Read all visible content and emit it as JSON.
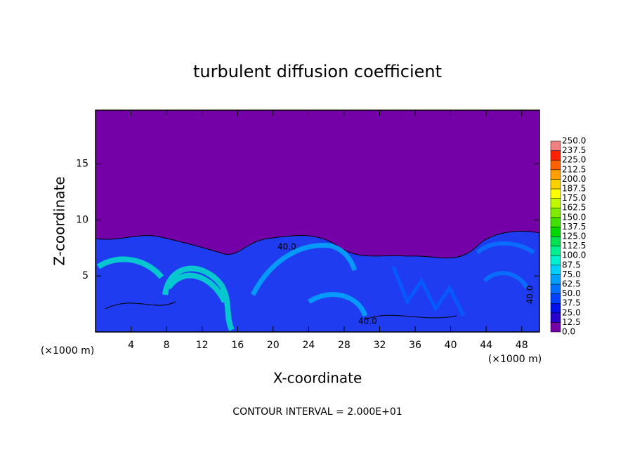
{
  "chart_data": {
    "type": "contour",
    "title": "turbulent diffusion coefficient",
    "x_label": "X-coordinate",
    "y_label": "Z-coordinate",
    "x_unit": "(×1000 m)",
    "y_unit": "(×1000 m)",
    "footer": "CONTOUR INTERVAL = 2.000E+01",
    "annotations": [
      "40.0",
      "40.0",
      "40.0"
    ],
    "xlim": [
      0,
      50
    ],
    "ylim": [
      0,
      19.8
    ],
    "xticks": [
      4,
      8,
      12,
      16,
      20,
      24,
      28,
      32,
      36,
      40,
      44,
      48
    ],
    "yticks": [
      5,
      10,
      15
    ],
    "colorbar": {
      "levels": [
        {
          "value": 0,
          "label": "0.0"
        },
        {
          "value": 12.5,
          "label": "12.5"
        },
        {
          "value": 25,
          "label": "25.0"
        },
        {
          "value": 37.5,
          "label": "37.5"
        },
        {
          "value": 50,
          "label": "50.0"
        },
        {
          "value": 62.5,
          "label": "62.5"
        },
        {
          "value": 75,
          "label": "75.0"
        },
        {
          "value": 87.5,
          "label": "87.5"
        },
        {
          "value": 100,
          "label": "100.0"
        },
        {
          "value": 112.5,
          "label": "112.5"
        },
        {
          "value": 125,
          "label": "125.0"
        },
        {
          "value": 137.5,
          "label": "137.5"
        },
        {
          "value": 150,
          "label": "150.0"
        },
        {
          "value": 162.5,
          "label": "162.5"
        },
        {
          "value": 175,
          "label": "175.0"
        },
        {
          "value": 187.5,
          "label": "187.5"
        },
        {
          "value": 200,
          "label": "200.0"
        },
        {
          "value": 212.5,
          "label": "212.5"
        },
        {
          "value": 225,
          "label": "225.0"
        },
        {
          "value": 237.5,
          "label": "237.5"
        },
        {
          "value": 250,
          "label": "250.0"
        }
      ],
      "colors": [
        "#7400a8",
        "#2800cc",
        "#0010e8",
        "#0040ff",
        "#0070ff",
        "#00a0ff",
        "#00d0ff",
        "#00f0d0",
        "#00f090",
        "#00e050",
        "#00d800",
        "#40e000",
        "#80ec00",
        "#c0f800",
        "#ffff00",
        "#ffd000",
        "#ffa000",
        "#ff6000",
        "#ff2000",
        "#f08080"
      ]
    }
  }
}
